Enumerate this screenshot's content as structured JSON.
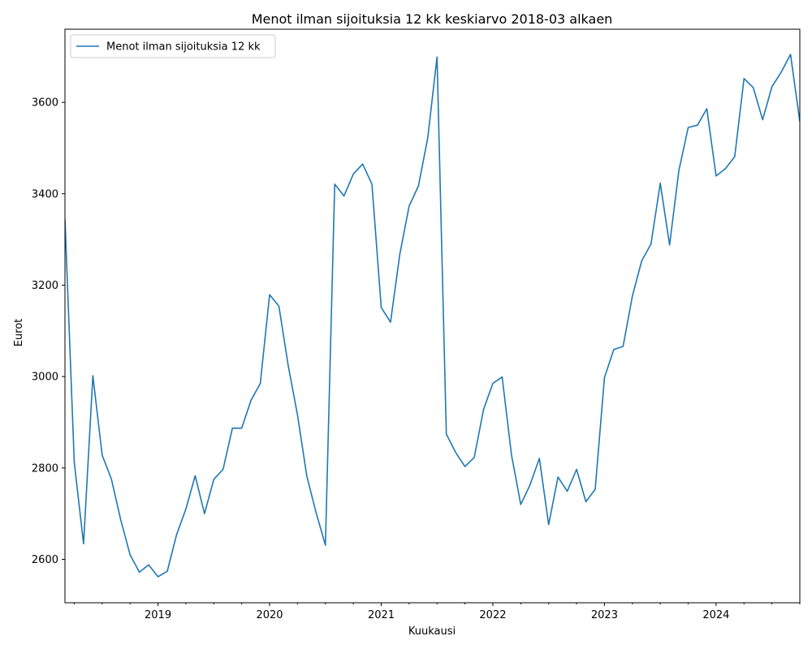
{
  "chart_data": {
    "type": "line",
    "title": "Menot ilman sijoituksia 12 kk keskiarvo 2018-03 alkaen",
    "xlabel": "Kuukausi",
    "ylabel": "Eurot",
    "x_range": [
      "2018-03",
      "2024-09"
    ],
    "ylim": [
      2505,
      3760
    ],
    "x_ticks": [
      "2019",
      "2020",
      "2021",
      "2022",
      "2023",
      "2024"
    ],
    "y_ticks": [
      2600,
      2800,
      3000,
      3200,
      3400,
      3600
    ],
    "grid": false,
    "legend_position": "upper left",
    "series": [
      {
        "name": "Menot ilman sijoituksia 12 kk",
        "color": "#1f77b4",
        "x": [
          "2018-03",
          "2018-04",
          "2018-05",
          "2018-06",
          "2018-07",
          "2018-08",
          "2018-09",
          "2018-10",
          "2018-11",
          "2018-12",
          "2019-01",
          "2019-02",
          "2019-03",
          "2019-04",
          "2019-05",
          "2019-06",
          "2019-07",
          "2019-08",
          "2019-09",
          "2019-10",
          "2019-11",
          "2019-12",
          "2020-01",
          "2020-02",
          "2020-03",
          "2020-04",
          "2020-05",
          "2020-06",
          "2020-07",
          "2020-08",
          "2020-09",
          "2020-10",
          "2020-11",
          "2020-12",
          "2021-01",
          "2021-02",
          "2021-03",
          "2021-04",
          "2021-05",
          "2021-06",
          "2021-07",
          "2021-08",
          "2021-09",
          "2021-10",
          "2021-11",
          "2021-12",
          "2022-01",
          "2022-02",
          "2022-03",
          "2022-04",
          "2022-05",
          "2022-06",
          "2022-07",
          "2022-08",
          "2022-09",
          "2022-10",
          "2022-11",
          "2022-12",
          "2023-01",
          "2023-02",
          "2023-03",
          "2023-04",
          "2023-05",
          "2023-06",
          "2023-07",
          "2023-08",
          "2023-09",
          "2023-10",
          "2023-11",
          "2023-12",
          "2024-01",
          "2024-02",
          "2024-03",
          "2024-04",
          "2024-05",
          "2024-06",
          "2024-07",
          "2024-08",
          "2024-09",
          "2024-10"
        ],
        "values": [
          3345,
          2812,
          2634,
          3002,
          2828,
          2775,
          2686,
          2610,
          2572,
          2588,
          2562,
          2574,
          2654,
          2710,
          2783,
          2700,
          2775,
          2797,
          2887,
          2887,
          2948,
          2985,
          3179,
          3154,
          3024,
          2916,
          2782,
          2702,
          2631,
          3421,
          3395,
          3443,
          3465,
          3421,
          3151,
          3119,
          3268,
          3373,
          3417,
          3522,
          3699,
          2874,
          2834,
          2803,
          2823,
          2928,
          2985,
          2999,
          2829,
          2720,
          2763,
          2821,
          2676,
          2780,
          2749,
          2797,
          2726,
          2753,
          2998,
          3059,
          3066,
          3176,
          3253,
          3290,
          3423,
          3288,
          3451,
          3545,
          3550,
          3586,
          3439,
          3455,
          3481,
          3652,
          3632,
          3562,
          3634,
          3666,
          3705,
          3558
        ]
      }
    ]
  }
}
